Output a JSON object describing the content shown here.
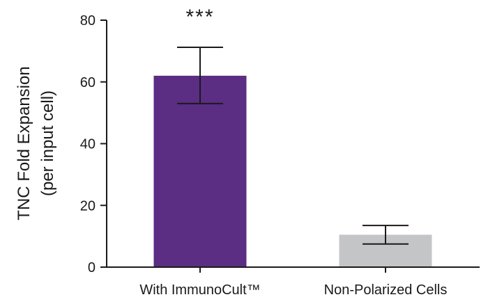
{
  "chart_data": {
    "type": "bar",
    "categories": [
      "With ImmunoCult™",
      "Non-Polarized Cells"
    ],
    "values": [
      62,
      10.5
    ],
    "errors": [
      {
        "low": 53,
        "high": 71.2
      },
      {
        "low": 7.5,
        "high": 13.5
      }
    ],
    "colors": [
      "#5b2d83",
      "#c4c5c7"
    ],
    "ylabel_lines": [
      "TNC Fold Expansion",
      "(per input cell)"
    ],
    "ylim": [
      0,
      80
    ],
    "yticks": [
      0,
      20,
      40,
      60,
      80
    ],
    "annotations": [
      {
        "category_index": 0,
        "text": "***"
      }
    ],
    "grid": false,
    "legend": "none"
  }
}
